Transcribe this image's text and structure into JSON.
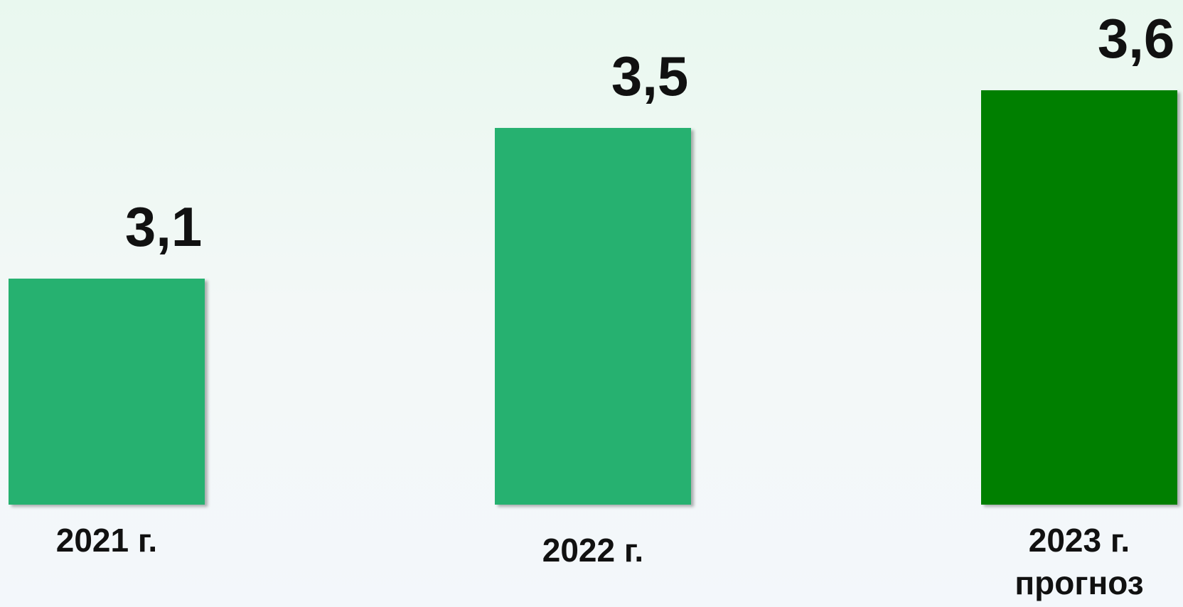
{
  "chart_data": {
    "type": "bar",
    "categories": [
      "2021 г.",
      "2022 г.",
      "2023 г. прогноз"
    ],
    "values": [
      3.1,
      3.5,
      3.6
    ],
    "value_labels": [
      "3,1",
      "3,5",
      "3,6"
    ],
    "colors": [
      "#27b16f",
      "#27b16f",
      "#007f00"
    ],
    "ylim": [
      2.5,
      3.7
    ]
  }
}
